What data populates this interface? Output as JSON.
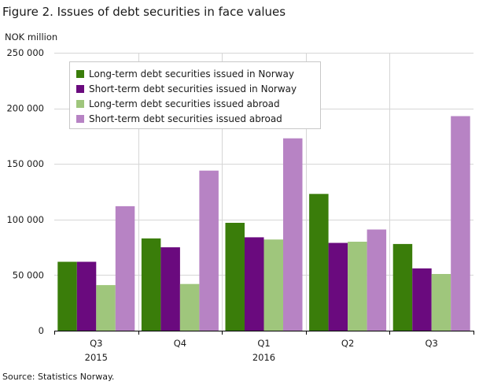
{
  "page": {
    "title": "Figure 2. Issues of debt securities in face values",
    "unit_label": "NOK million",
    "source": "Source: Statistics Norway."
  },
  "chart_data": {
    "type": "bar",
    "title": "Figure 2. Issues of debt securities in face values",
    "ylabel": "NOK million",
    "xlabel": "",
    "categories": [
      "Q3",
      "Q4",
      "Q1",
      "Q2",
      "Q3"
    ],
    "category_years": [
      "2015",
      "",
      "2016",
      "",
      ""
    ],
    "ylim": [
      0,
      250000
    ],
    "yticks": [
      0,
      50000,
      100000,
      150000,
      200000,
      250000
    ],
    "ytick_labels": [
      "0",
      "50 000",
      "100 000",
      "150 000",
      "200 000",
      "250 000"
    ],
    "grid": true,
    "legend_position": "top-left",
    "series": [
      {
        "name": "Long-term debt securities issued in Norway",
        "color": "#3a7d0a",
        "values": [
          62000,
          83000,
          97000,
          123000,
          78000
        ]
      },
      {
        "name": "Short-term debt securities  issued in Norway",
        "color": "#6a0a7e",
        "values": [
          62000,
          75000,
          84000,
          79000,
          56000
        ]
      },
      {
        "name": "Long-term debt securities issued abroad",
        "color": "#9fc67c",
        "values": [
          41000,
          42000,
          82000,
          80000,
          51000
        ]
      },
      {
        "name": "Short-term debt securities issued abroad",
        "color": "#b783c4",
        "values": [
          112000,
          144000,
          173000,
          91000,
          193000
        ]
      }
    ]
  }
}
